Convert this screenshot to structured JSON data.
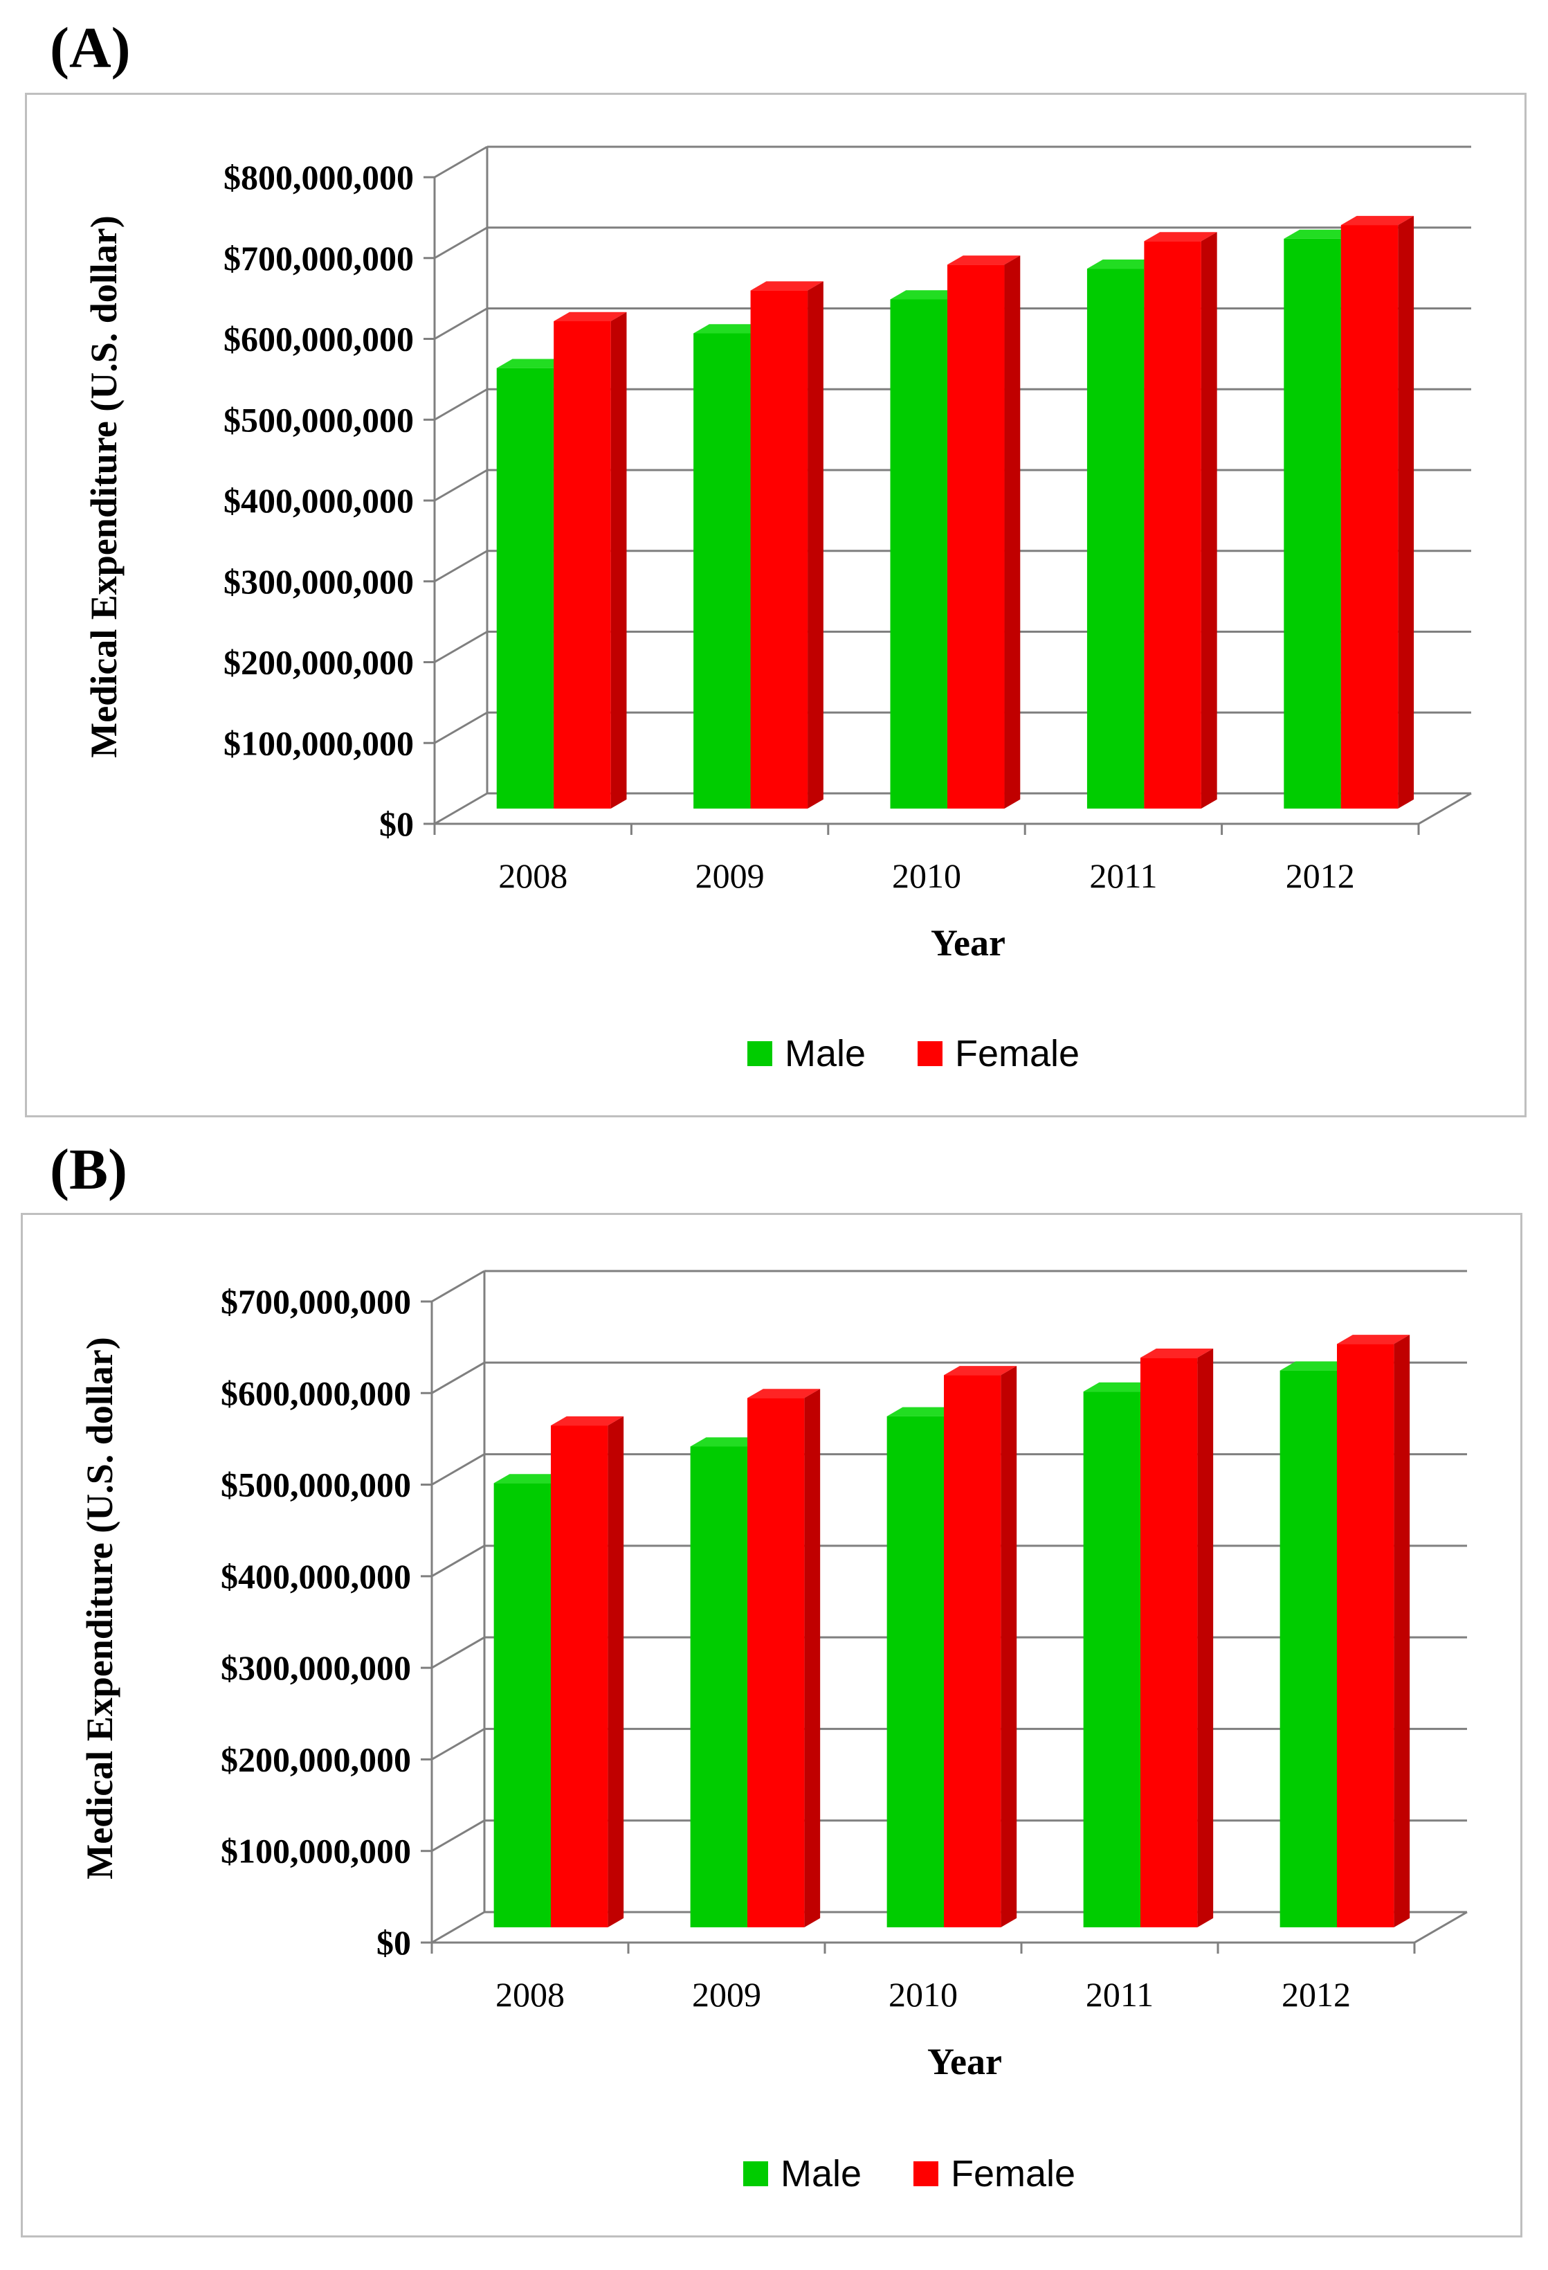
{
  "colors": {
    "male_front": "#00cc00",
    "male_top": "#22dd22",
    "male_side": "#009a00",
    "female_front": "#ff0000",
    "female_top": "#ff2424",
    "female_side": "#c00000",
    "grid": "#7f7f7f"
  },
  "chart_data": [
    {
      "panel": "(A)",
      "type": "bar",
      "categories": [
        "2008",
        "2009",
        "2010",
        "2011",
        "2012"
      ],
      "series": [
        {
          "name": "Male",
          "values": [
            545000000,
            588000000,
            630000000,
            668000000,
            705000000
          ]
        },
        {
          "name": "Female",
          "values": [
            603000000,
            641000000,
            673000000,
            702000000,
            722000000
          ]
        }
      ],
      "ylim": [
        0,
        800000000
      ],
      "yticks": [
        "$0",
        "$100,000,000",
        "$200,000,000",
        "$300,000,000",
        "$400,000,000",
        "$500,000,000",
        "$600,000,000",
        "$700,000,000",
        "$800,000,000"
      ],
      "xlabel": "Year",
      "ylabel": "Medical Expenditure (U.S.  dollar)",
      "legend": [
        "Male",
        "Female"
      ]
    },
    {
      "panel": "(B)",
      "type": "bar",
      "categories": [
        "2008",
        "2009",
        "2010",
        "2011",
        "2012"
      ],
      "series": [
        {
          "name": "Male",
          "values": [
            485000000,
            525000000,
            558000000,
            585000000,
            608000000
          ]
        },
        {
          "name": "Female",
          "values": [
            548000000,
            578000000,
            603000000,
            622000000,
            637000000
          ]
        }
      ],
      "ylim": [
        0,
        700000000
      ],
      "yticks": [
        "$0",
        "$100,000,000",
        "$200,000,000",
        "$300,000,000",
        "$400,000,000",
        "$500,000,000",
        "$600,000,000",
        "$700,000,000"
      ],
      "xlabel": "Year",
      "ylabel": "Medical Expenditure (U.S.  dollar)",
      "legend": [
        "Male",
        "Female"
      ]
    }
  ]
}
